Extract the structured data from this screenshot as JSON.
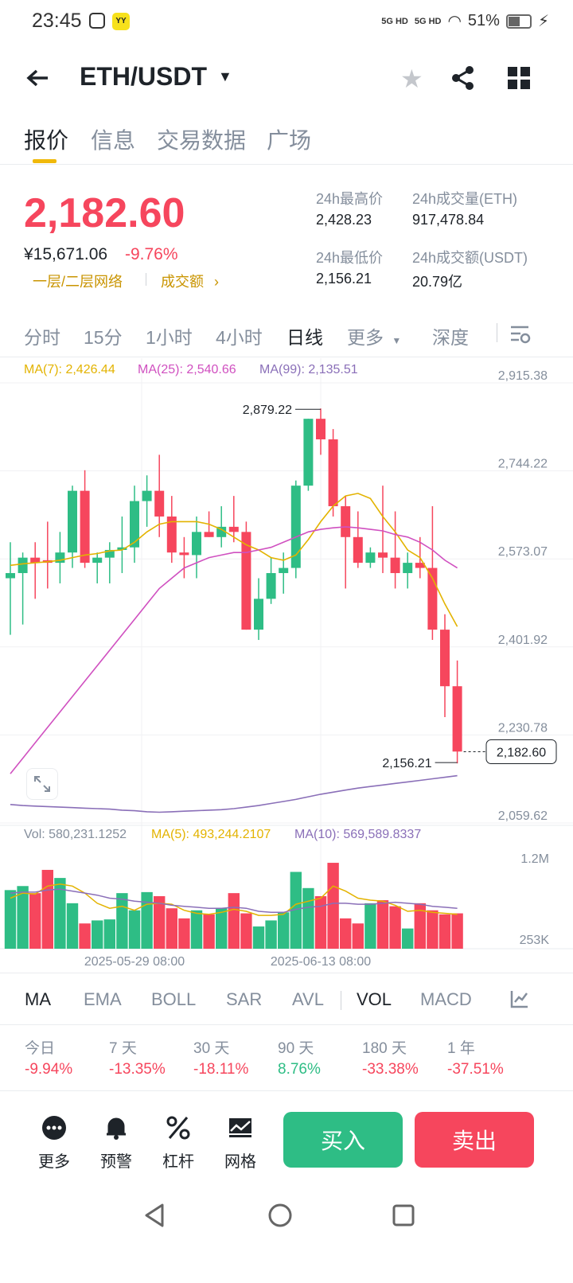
{
  "status": {
    "time": "23:45",
    "net1": "5G HD",
    "net2": "5G HD",
    "battery": "51%"
  },
  "header": {
    "pair": "ETH/USDT"
  },
  "tabs": [
    "报价",
    "信息",
    "交易数据",
    "广场"
  ],
  "price": {
    "last": "2,182.60",
    "cny": "¥15,671.06",
    "change": "-9.76%",
    "link1": "一层/二层网络",
    "link2": "成交额",
    "high_label": "24h最高价",
    "high": "2,428.23",
    "vol_label": "24h成交量(ETH)",
    "vol": "917,478.84",
    "low_label": "24h最低价",
    "low": "2,156.21",
    "amt_label": "24h成交额(USDT)",
    "amt": "20.79亿"
  },
  "intervals": [
    "分时",
    "15分",
    "1小时",
    "4小时",
    "日线",
    "更多",
    "深度"
  ],
  "ma_legend": {
    "ma7": "MA(7): 2,426.44",
    "ma25": "MA(25): 2,540.66",
    "ma99": "MA(99): 2,135.51"
  },
  "vol_legend": {
    "vol": "Vol: 580,231.1252",
    "ma5": "MA(5): 493,244.2107",
    "ma10": "MA(10): 569,589.8337"
  },
  "chart_data": {
    "type": "candlestick",
    "y_ticks": [
      "2,915.38",
      "2,744.22",
      "2,573.07",
      "2,401.92",
      "2,230.78",
      "2,059.62"
    ],
    "y_range": [
      2059.62,
      2915.38
    ],
    "high_label": "2,879.22",
    "low_label": "2,156.21",
    "last_label": "2,182.60",
    "vol_ticks": [
      "1.2M",
      "253K"
    ],
    "x_ticks": [
      "2025-05-29 08:00",
      "2025-06-13 08:00"
    ],
    "candles": [
      [
        2520,
        2590,
        2410,
        2530
      ],
      [
        2530,
        2570,
        2430,
        2560
      ],
      [
        2560,
        2590,
        2480,
        2550
      ],
      [
        2555,
        2630,
        2500,
        2550
      ],
      [
        2550,
        2610,
        2510,
        2570
      ],
      [
        2570,
        2700,
        2540,
        2690
      ],
      [
        2690,
        2730,
        2540,
        2550
      ],
      [
        2550,
        2570,
        2510,
        2560
      ],
      [
        2560,
        2590,
        2510,
        2575
      ],
      [
        2575,
        2640,
        2530,
        2580
      ],
      [
        2580,
        2700,
        2550,
        2670
      ],
      [
        2670,
        2720,
        2620,
        2690
      ],
      [
        2690,
        2760,
        2600,
        2640
      ],
      [
        2640,
        2680,
        2550,
        2570
      ],
      [
        2570,
        2600,
        2520,
        2565
      ],
      [
        2565,
        2640,
        2520,
        2610
      ],
      [
        2610,
        2650,
        2600,
        2600
      ],
      [
        2600,
        2660,
        2580,
        2620
      ],
      [
        2620,
        2680,
        2590,
        2610
      ],
      [
        2610,
        2630,
        2420,
        2420
      ],
      [
        2420,
        2520,
        2400,
        2480
      ],
      [
        2480,
        2560,
        2470,
        2530
      ],
      [
        2530,
        2570,
        2490,
        2540
      ],
      [
        2540,
        2710,
        2520,
        2700
      ],
      [
        2700,
        2830,
        2690,
        2830
      ],
      [
        2830,
        2850,
        2760,
        2790
      ],
      [
        2790,
        2810,
        2640,
        2660
      ],
      [
        2660,
        2680,
        2500,
        2600
      ],
      [
        2600,
        2650,
        2540,
        2550
      ],
      [
        2550,
        2580,
        2540,
        2570
      ],
      [
        2570,
        2700,
        2530,
        2560
      ],
      [
        2560,
        2650,
        2500,
        2530
      ],
      [
        2530,
        2570,
        2500,
        2550
      ],
      [
        2550,
        2600,
        2520,
        2540
      ],
      [
        2540,
        2660,
        2400,
        2420
      ],
      [
        2420,
        2450,
        2250,
        2310
      ],
      [
        2310,
        2360,
        2160,
        2183
      ]
    ],
    "ma7": [
      2545,
      2548,
      2550,
      2552,
      2555,
      2560,
      2565,
      2568,
      2573,
      2575,
      2590,
      2610,
      2625,
      2630,
      2630,
      2630,
      2625,
      2615,
      2600,
      2585,
      2575,
      2560,
      2555,
      2565,
      2595,
      2630,
      2660,
      2680,
      2685,
      2675,
      2640,
      2610,
      2575,
      2560,
      2520,
      2470,
      2426
    ],
    "ma25": [
      2140,
      2170,
      2200,
      2230,
      2260,
      2290,
      2320,
      2350,
      2380,
      2410,
      2440,
      2470,
      2500,
      2520,
      2540,
      2550,
      2560,
      2565,
      2570,
      2570,
      2575,
      2580,
      2590,
      2600,
      2610,
      2615,
      2618,
      2620,
      2618,
      2615,
      2612,
      2605,
      2600,
      2590,
      2575,
      2555,
      2540
    ],
    "ma99": [
      2080,
      2078,
      2077,
      2076,
      2075,
      2074,
      2073,
      2072,
      2071,
      2069,
      2068,
      2066,
      2065,
      2066,
      2067,
      2068,
      2069,
      2070,
      2072,
      2075,
      2078,
      2082,
      2086,
      2090,
      2095,
      2100,
      2104,
      2108,
      2112,
      2115,
      2118,
      2121,
      2124,
      2127,
      2130,
      2133,
      2136
    ],
    "volumes": [
      0.58,
      0.62,
      0.55,
      0.78,
      0.7,
      0.45,
      0.25,
      0.28,
      0.29,
      0.55,
      0.38,
      0.56,
      0.52,
      0.4,
      0.3,
      0.38,
      0.34,
      0.4,
      0.55,
      0.35,
      0.22,
      0.28,
      0.36,
      0.76,
      0.6,
      0.52,
      0.85,
      0.3,
      0.25,
      0.45,
      0.48,
      0.42,
      0.2,
      0.45,
      0.38,
      0.34,
      0.35
    ],
    "vol_ma5": [
      0.5,
      0.55,
      0.54,
      0.62,
      0.64,
      0.62,
      0.55,
      0.45,
      0.4,
      0.42,
      0.38,
      0.44,
      0.45,
      0.44,
      0.38,
      0.35,
      0.34,
      0.36,
      0.39,
      0.37,
      0.33,
      0.33,
      0.34,
      0.44,
      0.47,
      0.5,
      0.62,
      0.57,
      0.5,
      0.48,
      0.47,
      0.43,
      0.37,
      0.38,
      0.36,
      0.35,
      0.34
    ],
    "vol_ma10": [
      0.55,
      0.56,
      0.56,
      0.58,
      0.59,
      0.57,
      0.55,
      0.53,
      0.5,
      0.49,
      0.47,
      0.46,
      0.45,
      0.43,
      0.42,
      0.41,
      0.4,
      0.4,
      0.41,
      0.4,
      0.37,
      0.36,
      0.36,
      0.39,
      0.41,
      0.42,
      0.45,
      0.45,
      0.44,
      0.44,
      0.45,
      0.46,
      0.45,
      0.44,
      0.42,
      0.41,
      0.4
    ]
  },
  "indicators": [
    "MA",
    "EMA",
    "BOLL",
    "SAR",
    "AVL",
    "VOL",
    "MACD"
  ],
  "performance": [
    {
      "label": "今日",
      "value": "-9.94%",
      "dir": "down"
    },
    {
      "label": "7 天",
      "value": "-13.35%",
      "dir": "down"
    },
    {
      "label": "30 天",
      "value": "-18.11%",
      "dir": "down"
    },
    {
      "label": "90 天",
      "value": "8.76%",
      "dir": "up"
    },
    {
      "label": "180 天",
      "value": "-33.38%",
      "dir": "down"
    },
    {
      "label": "1 年",
      "value": "-37.51%",
      "dir": "down"
    }
  ],
  "bottom": {
    "more": "更多",
    "alert": "预警",
    "leverage": "杠杆",
    "grid": "网格",
    "buy": "买入",
    "sell": "卖出"
  }
}
